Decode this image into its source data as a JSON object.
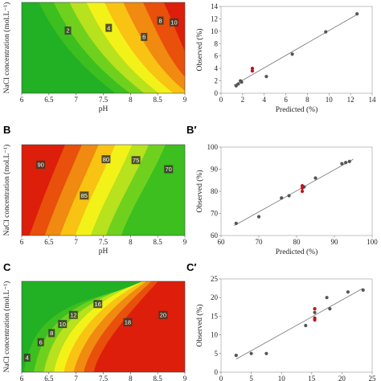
{
  "panels": {
    "A_letter": "",
    "B_letter": "B",
    "C_letter": "C",
    "A2_letter": "",
    "B2_letter": "B′",
    "C2_letter": "C′"
  },
  "chart_data": [
    {
      "id": "A",
      "type": "heatmap",
      "xlabel": "pH",
      "ylabel": "NaCl concentration (mol.L⁻¹)",
      "xlim": [
        6,
        9
      ],
      "xticks": [
        "6",
        "6.5",
        "7",
        "7.5",
        "8",
        "8.5",
        "9"
      ],
      "contour_labels": [
        {
          "text": "2",
          "x": 6.85,
          "level": 2
        },
        {
          "text": "4",
          "x": 7.6,
          "level": 4
        },
        {
          "text": "6",
          "x": 8.25,
          "level": 6
        },
        {
          "text": "8",
          "x": 8.55,
          "level": 8
        },
        {
          "text": "10",
          "x": 8.8,
          "level": 10
        }
      ],
      "colors": [
        "#22b025",
        "#3cbf1f",
        "#6fd11e",
        "#b7e21d",
        "#f2f219",
        "#f9c313",
        "#f08a10",
        "#e8500c",
        "#dd1e0a"
      ]
    },
    {
      "id": "A'",
      "type": "scatter",
      "xlabel": "Predicted (%)",
      "ylabel": "Observed (%)",
      "xlim": [
        0,
        14
      ],
      "ylim": [
        0,
        14
      ],
      "xticks": [
        "0",
        "2",
        "4",
        "6",
        "8",
        "10",
        "12",
        "14"
      ],
      "yticks": [
        "0",
        "2",
        "4",
        "6",
        "8",
        "10",
        "12",
        "14"
      ],
      "points": [
        [
          1.4,
          1.2
        ],
        [
          1.6,
          1.5
        ],
        [
          1.8,
          2.0
        ],
        [
          1.9,
          1.8
        ],
        [
          4.2,
          2.7
        ],
        [
          6.6,
          6.3
        ],
        [
          9.7,
          9.9
        ],
        [
          12.6,
          12.8
        ]
      ],
      "red_points": [
        [
          2.9,
          3.6
        ],
        [
          2.9,
          4.0
        ]
      ],
      "fit_line": [
        [
          1.2,
          1.3
        ],
        [
          12.7,
          12.8
        ]
      ]
    },
    {
      "id": "B",
      "type": "heatmap",
      "xlabel": "pH",
      "ylabel": "NaCl concentration (mol.L⁻¹)",
      "xlim": [
        6,
        9
      ],
      "xticks": [
        "6",
        "6.5",
        "7",
        "7.5",
        "8",
        "8.5",
        "9"
      ],
      "contour_labels": [
        {
          "text": "90",
          "x": 6.35,
          "level": 90
        },
        {
          "text": "85",
          "x": 7.15,
          "level": 85
        },
        {
          "text": "80",
          "x": 7.55,
          "level": 80
        },
        {
          "text": "75",
          "x": 8.1,
          "level": 75
        },
        {
          "text": "70",
          "x": 8.7,
          "level": 70
        }
      ],
      "colors": [
        "#dd1e0a",
        "#e8500c",
        "#f08a10",
        "#f9c313",
        "#f2f219",
        "#b7e21d",
        "#6fd11e",
        "#3cbf1f"
      ]
    },
    {
      "id": "B'",
      "type": "scatter",
      "xlabel": "Predicted (%)",
      "ylabel": "Observed (%)",
      "xlim": [
        60,
        100
      ],
      "ylim": [
        60,
        100
      ],
      "xticks": [
        "60",
        "70",
        "80",
        "90",
        "100"
      ],
      "yticks": [
        "60",
        "70",
        "80",
        "90",
        "100"
      ],
      "points": [
        [
          64,
          65.5
        ],
        [
          70,
          68.5
        ],
        [
          76,
          77
        ],
        [
          78,
          78
        ],
        [
          82,
          82
        ],
        [
          85,
          86
        ],
        [
          92,
          92.5
        ],
        [
          93,
          93
        ],
        [
          94,
          93.5
        ]
      ],
      "red_points": [
        [
          81.5,
          80
        ],
        [
          81.5,
          81.5
        ],
        [
          81.5,
          82.5
        ]
      ],
      "fit_line": [
        [
          63.5,
          64.5
        ],
        [
          95,
          94.5
        ]
      ]
    },
    {
      "id": "C",
      "type": "heatmap",
      "xlabel": "",
      "ylabel": "NaCl concentration (mol.L⁻¹)",
      "xlim": [
        6,
        9
      ],
      "xticks": [
        "6",
        "6.5",
        "7",
        "7.5",
        "8",
        "8.5",
        "9"
      ],
      "contour_labels": [
        {
          "text": "4",
          "x": 6.1,
          "level": 4
        },
        {
          "text": "6",
          "x": 6.35,
          "level": 6
        },
        {
          "text": "8",
          "x": 6.55,
          "level": 8
        },
        {
          "text": "10",
          "x": 6.75,
          "level": 10
        },
        {
          "text": "12",
          "x": 6.95,
          "level": 12
        },
        {
          "text": "16",
          "x": 7.4,
          "level": 16
        },
        {
          "text": "18",
          "x": 7.95,
          "level": 18
        },
        {
          "text": "20",
          "x": 8.6,
          "level": 20
        }
      ],
      "colors": [
        "#22b025",
        "#3cbf1f",
        "#6fd11e",
        "#b7e21d",
        "#f2f219",
        "#f9c313",
        "#f08a10",
        "#e8500c",
        "#dd1e0a"
      ]
    },
    {
      "id": "C'",
      "type": "scatter",
      "xlabel": "",
      "ylabel": "Observed (%)",
      "xlim": [
        0,
        25
      ],
      "ylim": [
        0,
        25
      ],
      "xticks": [
        "0",
        "5",
        "10",
        "15",
        "20",
        "25"
      ],
      "yticks": [
        "0",
        "5",
        "10",
        "15",
        "20",
        "25"
      ],
      "points": [
        [
          2.5,
          4.5
        ],
        [
          5,
          5
        ],
        [
          7.5,
          5
        ],
        [
          14,
          12.5
        ],
        [
          15.5,
          16
        ],
        [
          17.5,
          20
        ],
        [
          18,
          17
        ],
        [
          21,
          21.5
        ],
        [
          23.5,
          22
        ]
      ],
      "red_points": [
        [
          15.5,
          14
        ],
        [
          15.5,
          14.5
        ],
        [
          15.5,
          17
        ]
      ],
      "fit_line": [
        [
          2.5,
          3.5
        ],
        [
          23.5,
          22.5
        ]
      ]
    }
  ]
}
